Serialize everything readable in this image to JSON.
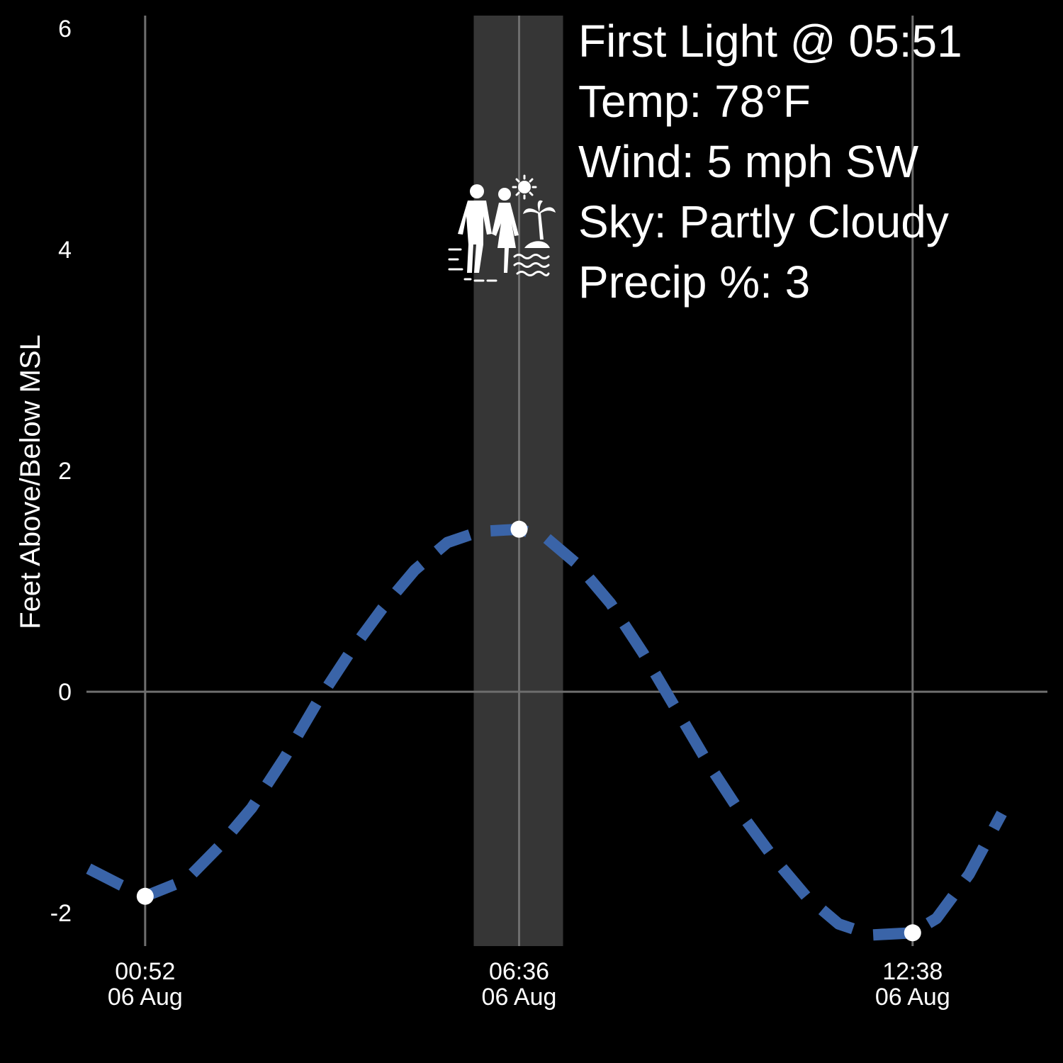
{
  "chart_data": {
    "type": "line",
    "ylabel": "Feet Above/Below MSL",
    "ylim": [
      -2.3,
      6
    ],
    "y_ticks": [
      -2,
      0,
      2,
      4,
      6
    ],
    "y_tick_labels": [
      "-2",
      "0",
      "2",
      "4",
      "6"
    ],
    "xlim": [
      "2024-08-05T23:58",
      "2024-08-06T14:42"
    ],
    "x_ticks": [
      {
        "x": "2024-08-06T00:52",
        "time": "00:52",
        "date": "06 Aug"
      },
      {
        "x": "2024-08-06T06:36",
        "time": "06:36",
        "date": "06 Aug"
      },
      {
        "x": "2024-08-06T12:38",
        "time": "12:38",
        "date": "06 Aug"
      }
    ],
    "highlight_band": {
      "x0": "2024-08-06T05:51",
      "x1": "2024-08-06T07:21"
    },
    "series": [
      {
        "x": [
          "2024-08-06T00:00",
          "2024-08-06T00:30",
          "2024-08-06T00:52",
          "2024-08-06T01:30",
          "2024-08-06T02:00",
          "2024-08-06T02:30",
          "2024-08-06T03:00",
          "2024-08-06T03:30",
          "2024-08-06T04:00",
          "2024-08-06T04:30",
          "2024-08-06T05:00",
          "2024-08-06T05:30",
          "2024-08-06T06:00",
          "2024-08-06T06:36",
          "2024-08-06T07:00",
          "2024-08-06T07:30",
          "2024-08-06T08:00",
          "2024-08-06T08:30",
          "2024-08-06T09:00",
          "2024-08-06T09:30",
          "2024-08-06T10:00",
          "2024-08-06T10:30",
          "2024-08-06T11:00",
          "2024-08-06T11:30",
          "2024-08-06T12:00",
          "2024-08-06T12:38",
          "2024-08-06T13:00",
          "2024-08-06T13:30",
          "2024-08-06T14:00"
        ],
        "values": [
          -1.6,
          -1.75,
          -1.85,
          -1.7,
          -1.4,
          -1.05,
          -0.6,
          -0.1,
          0.35,
          0.75,
          1.1,
          1.35,
          1.45,
          1.47,
          1.4,
          1.15,
          0.8,
          0.35,
          -0.15,
          -0.65,
          -1.1,
          -1.5,
          -1.85,
          -2.1,
          -2.2,
          -2.18,
          -2.05,
          -1.65,
          -1.1
        ]
      }
    ],
    "extrema_markers": [
      {
        "x": "2024-08-06T00:52",
        "y": -1.85
      },
      {
        "x": "2024-08-06T06:36",
        "y": 1.47
      },
      {
        "x": "2024-08-06T12:38",
        "y": -2.18
      }
    ],
    "annotation": {
      "headline": "First Light @ 05:51",
      "lines": [
        "Temp: 78°F",
        "Wind: 5 mph SW",
        "Sky: Partly Cloudy",
        "Precip %: 3"
      ]
    },
    "icon": "beach-couple-icon",
    "colors": {
      "background": "#000000",
      "line": "#3a64a8",
      "headline": "#f28c1a",
      "text": "#ffffff",
      "band": "#363636",
      "gridline": "#6e6e6e",
      "marker": "#ffffff"
    }
  }
}
